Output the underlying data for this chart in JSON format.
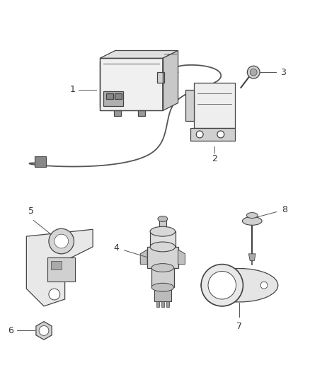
{
  "bg_color": "#ffffff",
  "line_color": "#444444",
  "label_color": "#333333",
  "fig_width": 4.38,
  "fig_height": 5.33,
  "dpi": 100,
  "cable_color": "#555555",
  "part_face": "#f5f5f5",
  "part_shadow": "#d0d0d0",
  "part_dark": "#aaaaaa"
}
